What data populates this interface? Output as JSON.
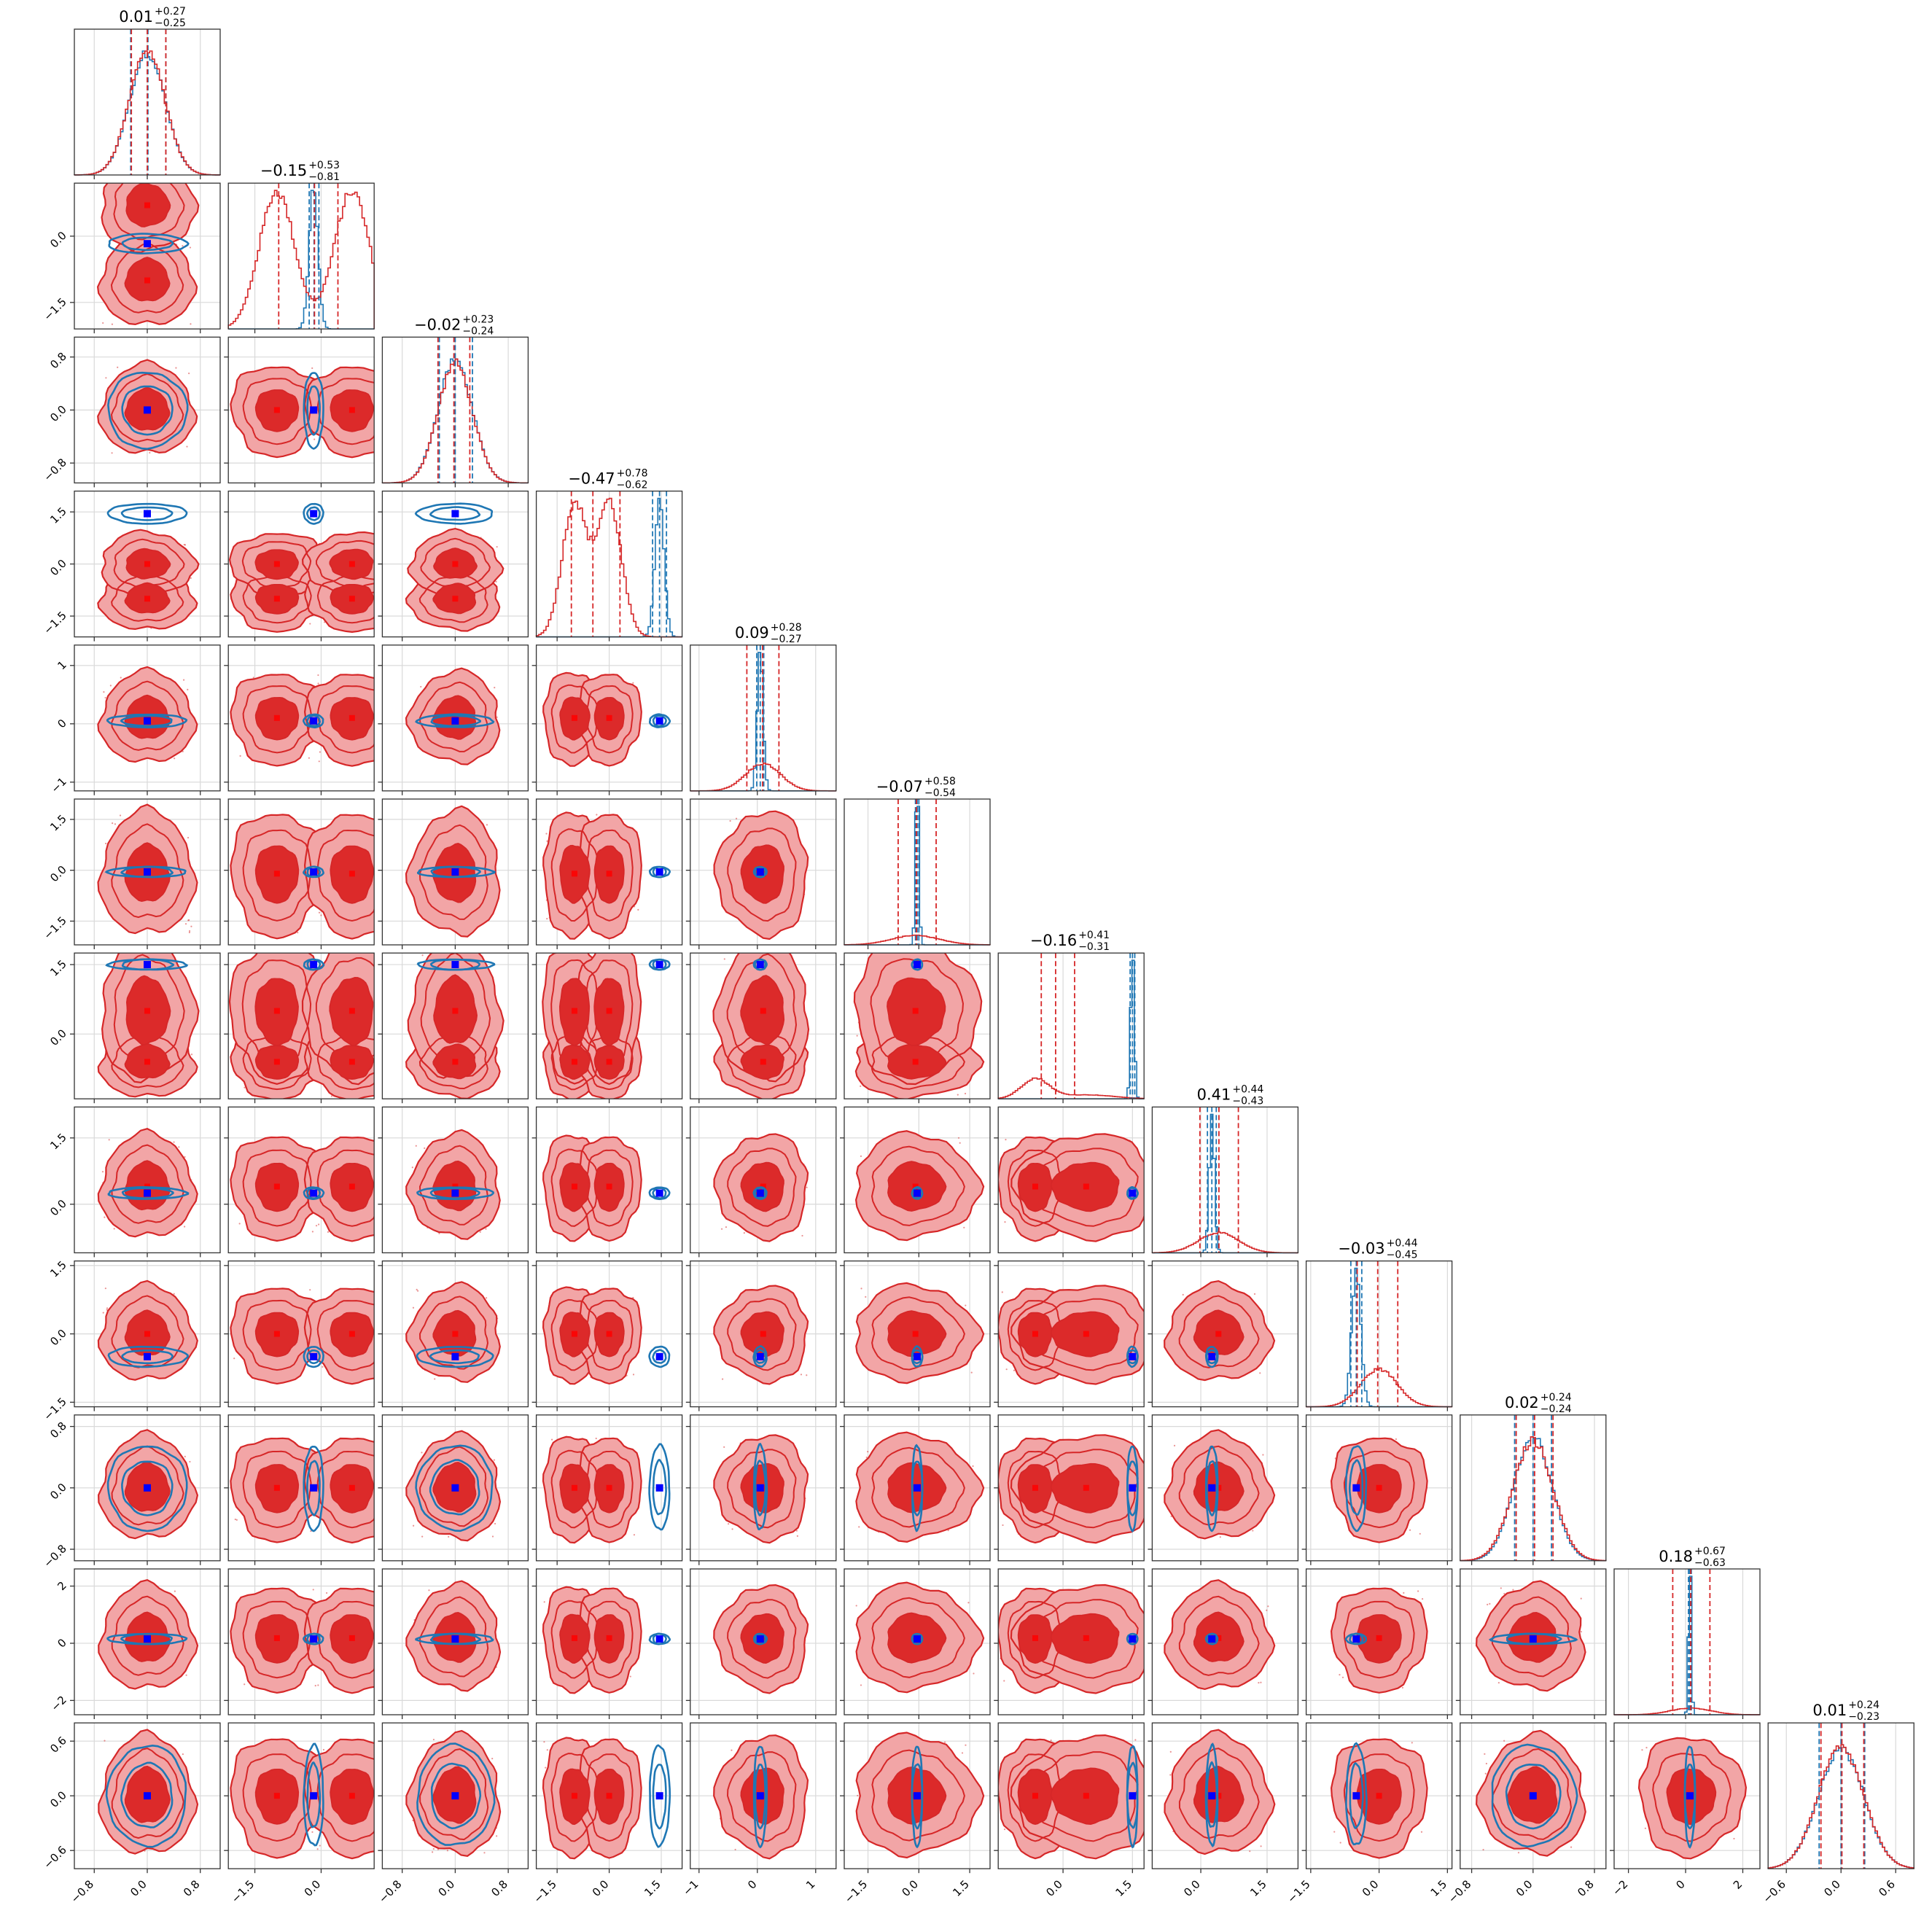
{
  "chart_data": {
    "type": "corner",
    "n_params": 12,
    "series": [
      {
        "name": "",
        "color": "#d62728"
      },
      {
        "name": "",
        "color": "#1f77b4"
      }
    ],
    "titles": [
      {
        "median": "0.01",
        "plus": "+0.27",
        "minus": "−0.25"
      },
      {
        "median": "−0.15",
        "plus": "+0.53",
        "minus": "−0.81"
      },
      {
        "median": "−0.02",
        "plus": "+0.23",
        "minus": "−0.24"
      },
      {
        "median": "−0.47",
        "plus": "+0.78",
        "minus": "−0.62"
      },
      {
        "median": "0.09",
        "plus": "+0.28",
        "minus": "−0.27"
      },
      {
        "median": "−0.07",
        "plus": "+0.58",
        "minus": "−0.54"
      },
      {
        "median": "−0.16",
        "plus": "+0.41",
        "minus": "−0.31"
      },
      {
        "median": "0.41",
        "plus": "+0.44",
        "minus": "−0.43"
      },
      {
        "median": "−0.03",
        "plus": "+0.44",
        "minus": "−0.45"
      },
      {
        "median": "0.02",
        "plus": "+0.24",
        "minus": "−0.24"
      },
      {
        "median": "0.18",
        "plus": "+0.67",
        "minus": "−0.63"
      },
      {
        "median": "0.01",
        "plus": "+0.24",
        "minus": "−0.23"
      }
    ],
    "params": [
      {
        "range": [
          -1.1,
          1.1
        ],
        "ticks": [
          -0.8,
          0.0,
          0.8
        ],
        "tick_labels": [
          "−0.8",
          "0.0",
          "0.8"
        ],
        "truth": 0.0,
        "red": {
          "peaks": [
            [
              0.0,
              0.27,
              1
            ]
          ],
          "quantiles": [
            -0.24,
            0.0,
            0.28
          ]
        },
        "blue": {
          "center": 0.0,
          "width": 0.27,
          "height": 1.0,
          "quantiles": [
            -0.25,
            0.01,
            0.28
          ]
        }
      },
      {
        "range": [
          -2.1,
          1.2
        ],
        "ticks": [
          -1.5,
          0.0
        ],
        "tick_labels": [
          "−1.5",
          "0.0"
        ],
        "truth": -0.18,
        "red": {
          "peaks": [
            [
              -1.0,
              0.4,
              1
            ],
            [
              0.7,
              0.4,
              1
            ]
          ],
          "quantiles": [
            -0.96,
            -0.15,
            0.38
          ]
        },
        "blue": {
          "center": -0.17,
          "width": 0.1,
          "height": 1.0,
          "quantiles": [
            -0.27,
            -0.16,
            -0.05
          ]
        }
      },
      {
        "range": [
          -1.1,
          1.1
        ],
        "ticks": [
          -0.8,
          0.0,
          0.8
        ],
        "tick_labels": [
          "−0.8",
          "0.0",
          "0.8"
        ],
        "truth": 0.0,
        "red": {
          "peaks": [
            [
              0.0,
              0.26,
              1
            ]
          ],
          "quantiles": [
            -0.26,
            -0.02,
            0.22
          ]
        },
        "blue": {
          "center": 0.0,
          "width": 0.26,
          "height": 1.0,
          "quantiles": [
            -0.24,
            0.0,
            0.26
          ]
        }
      },
      {
        "range": [
          -2.1,
          2.1
        ],
        "ticks": [
          -1.5,
          0.0,
          1.5
        ],
        "tick_labels": [
          "−1.5",
          "0.0",
          "1.5"
        ],
        "truth": 1.45,
        "red": {
          "peaks": [
            [
              -1.0,
              0.35,
              1
            ],
            [
              0.0,
              0.35,
              1
            ]
          ],
          "quantiles": [
            -1.09,
            -0.47,
            0.31
          ]
        },
        "blue": {
          "center": 1.45,
          "width": 0.13,
          "height": 1.0,
          "quantiles": [
            1.25,
            1.45,
            1.65
          ]
        }
      },
      {
        "range": [
          -1.15,
          1.35
        ],
        "ticks": [
          -1.0,
          0.0,
          1.0
        ],
        "tick_labels": [
          "−1",
          "0",
          "1"
        ],
        "truth": 0.05,
        "red": {
          "peaks": [
            [
              0.1,
              0.3,
              0.2
            ]
          ],
          "quantiles": [
            -0.18,
            0.09,
            0.37
          ]
        },
        "blue": {
          "center": 0.05,
          "width": 0.05,
          "height": 1.0,
          "quantiles": [
            -0.01,
            0.05,
            0.11
          ]
        }
      },
      {
        "range": [
          -2.2,
          2.1
        ],
        "ticks": [
          -1.5,
          0.0,
          1.5
        ],
        "tick_labels": [
          "−1.5",
          "0.0",
          "1.5"
        ],
        "truth": -0.05,
        "red": {
          "peaks": [
            [
              -0.1,
              0.7,
              0.07
            ]
          ],
          "quantiles": [
            -0.61,
            -0.07,
            0.51
          ]
        },
        "blue": {
          "center": -0.05,
          "width": 0.05,
          "height": 1.0,
          "quantiles": [
            -0.1,
            -0.05,
            0.0
          ]
        }
      },
      {
        "range": [
          -1.4,
          1.75
        ],
        "ticks": [
          0.0,
          1.5
        ],
        "tick_labels": [
          "0.0",
          "1.5"
        ],
        "truth": 1.5,
        "red": {
          "peaks": [
            [
              -0.6,
              0.3,
              0.15
            ],
            [
              0.5,
              0.6,
              0.03
            ]
          ],
          "quantiles": [
            -0.47,
            -0.16,
            0.25
          ]
        },
        "blue": {
          "center": 1.5,
          "width": 0.04,
          "height": 1.0,
          "quantiles": [
            1.45,
            1.5,
            1.55
          ]
        }
      },
      {
        "range": [
          -1.1,
          2.2
        ],
        "ticks": [
          0.0,
          1.5
        ],
        "tick_labels": [
          "0.0",
          "1.5"
        ],
        "truth": 0.25,
        "red": {
          "peaks": [
            [
              0.4,
              0.45,
              0.15
            ]
          ],
          "quantiles": [
            -0.02,
            0.41,
            0.85
          ]
        },
        "blue": {
          "center": 0.25,
          "width": 0.06,
          "height": 1.0,
          "quantiles": [
            0.15,
            0.25,
            0.35
          ]
        }
      },
      {
        "range": [
          -1.6,
          1.6
        ],
        "ticks": [
          -1.5,
          0.0,
          1.5
        ],
        "tick_labels": [
          "−1.5",
          "0.0",
          "1.5"
        ],
        "truth": -0.5,
        "red": {
          "peaks": [
            [
              0.0,
              0.4,
              0.28
            ]
          ],
          "quantiles": [
            -0.48,
            -0.03,
            0.41
          ]
        },
        "blue": {
          "center": -0.5,
          "width": 0.1,
          "height": 1.0,
          "quantiles": [
            -0.62,
            -0.5,
            -0.38
          ]
        }
      },
      {
        "range": [
          -0.95,
          0.95
        ],
        "ticks": [
          -0.8,
          0.0,
          0.8
        ],
        "tick_labels": [
          "−0.8",
          "0.0",
          "0.8"
        ],
        "truth": 0.0,
        "red": {
          "peaks": [
            [
              0.0,
              0.26,
              1
            ]
          ],
          "quantiles": [
            -0.22,
            0.02,
            0.26
          ]
        },
        "blue": {
          "center": 0.0,
          "width": 0.25,
          "height": 1.0,
          "quantiles": [
            -0.24,
            0.0,
            0.24
          ]
        }
      },
      {
        "range": [
          -2.5,
          2.6
        ],
        "ticks": [
          -2.0,
          0.0,
          2.0
        ],
        "tick_labels": [
          "−2",
          "0",
          "2"
        ],
        "truth": 0.15,
        "red": {
          "peaks": [
            [
              0.18,
              0.7,
              0.05
            ]
          ],
          "quantiles": [
            -0.45,
            0.18,
            0.85
          ]
        },
        "blue": {
          "center": 0.15,
          "width": 0.05,
          "height": 1.0,
          "quantiles": [
            0.1,
            0.15,
            0.2
          ]
        }
      },
      {
        "range": [
          -0.8,
          0.8
        ],
        "ticks": [
          -0.6,
          0.0,
          0.6
        ],
        "tick_labels": [
          "−0.6",
          "0.0",
          "0.6"
        ],
        "truth": 0.0,
        "red": {
          "peaks": [
            [
              0.0,
              0.25,
              1
            ]
          ],
          "quantiles": [
            -0.22,
            0.01,
            0.25
          ]
        },
        "blue": {
          "center": 0.0,
          "width": 0.25,
          "height": 1.0,
          "quantiles": [
            -0.24,
            0.0,
            0.26
          ]
        }
      }
    ]
  }
}
